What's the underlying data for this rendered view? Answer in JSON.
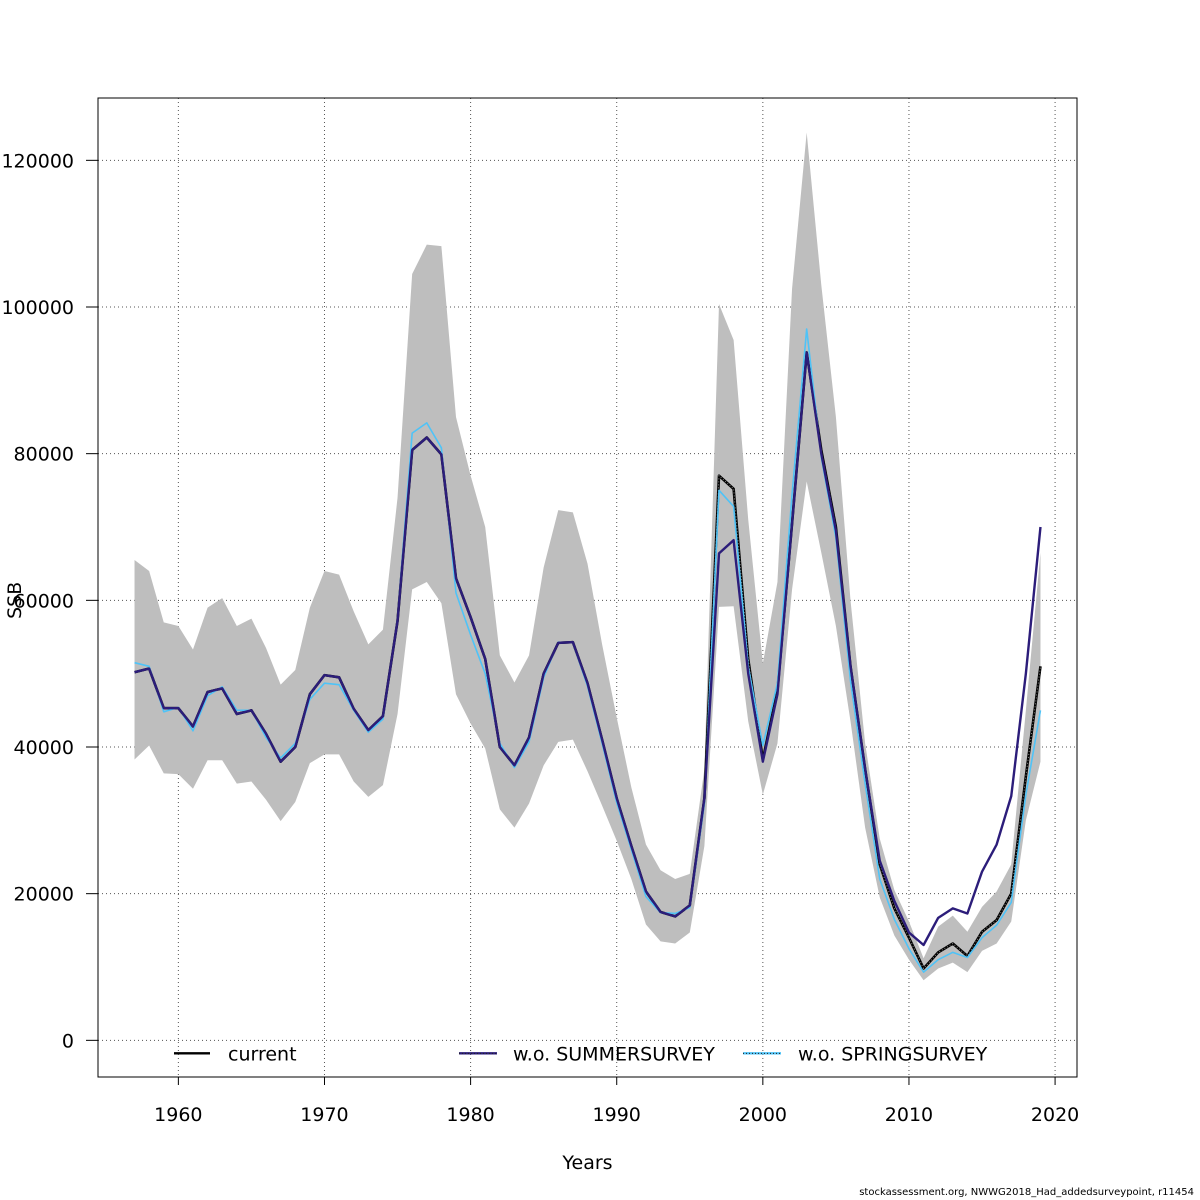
{
  "chart_data": {
    "type": "line",
    "xlabel": "Years",
    "ylabel": "SSB",
    "xlim": [
      1954.5,
      2021.5
    ],
    "ylim": [
      -5000,
      128500
    ],
    "x_ticks": [
      1960,
      1970,
      1980,
      1990,
      2000,
      2010,
      2020
    ],
    "y_ticks": [
      0,
      20000,
      40000,
      60000,
      80000,
      100000,
      120000
    ],
    "x_tick_labels": [
      "1960",
      "1970",
      "1980",
      "1990",
      "2000",
      "2010",
      "2020"
    ],
    "y_tick_labels": [
      "0",
      "20000",
      "40000",
      "60000",
      "80000",
      "100000",
      "120000"
    ],
    "grid": true,
    "x": [
      1957,
      1958,
      1959,
      1960,
      1961,
      1962,
      1963,
      1964,
      1965,
      1966,
      1967,
      1968,
      1969,
      1970,
      1971,
      1972,
      1973,
      1974,
      1975,
      1976,
      1977,
      1978,
      1979,
      1980,
      1981,
      1982,
      1983,
      1984,
      1985,
      1986,
      1987,
      1988,
      1989,
      1990,
      1991,
      1992,
      1993,
      1994,
      1995,
      1996,
      1997,
      1998,
      1999,
      2000,
      2001,
      2002,
      2003,
      2004,
      2005,
      2006,
      2007,
      2008,
      2009,
      2010,
      2011,
      2012,
      2013,
      2014,
      2015,
      2016,
      2017,
      2018,
      2019
    ],
    "confidence_band": {
      "name": "current 95% CI",
      "color": "#bebebe",
      "upper": [
        65500,
        64000,
        57000,
        56500,
        53300,
        59000,
        60300,
        56500,
        57500,
        53500,
        48500,
        50500,
        59000,
        64000,
        63500,
        58500,
        54000,
        56000,
        74000,
        104500,
        108500,
        108300,
        85000,
        77000,
        70000,
        52500,
        48800,
        52500,
        64500,
        72300,
        72000,
        65000,
        54000,
        44000,
        34500,
        26700,
        23200,
        22000,
        22700,
        37000,
        100400,
        95500,
        71000,
        51400,
        62500,
        102500,
        123800,
        103000,
        85000,
        60000,
        40500,
        27500,
        20500,
        16200,
        11200,
        15500,
        17000,
        14800,
        18200,
        20300,
        24000,
        45000,
        66500
      ],
      "lower": [
        38300,
        40200,
        36400,
        36300,
        34300,
        38200,
        38200,
        35000,
        35300,
        32800,
        29900,
        32500,
        37800,
        39000,
        39000,
        35300,
        33200,
        34800,
        44500,
        61500,
        62500,
        59600,
        47200,
        43200,
        39800,
        31500,
        29000,
        32300,
        37500,
        40700,
        41000,
        36700,
        32000,
        27200,
        22000,
        15800,
        13500,
        13200,
        14700,
        26500,
        59100,
        59200,
        43500,
        33500,
        40500,
        61500,
        76200,
        66500,
        56500,
        43500,
        29000,
        19500,
        14300,
        11000,
        8200,
        9800,
        10600,
        9300,
        12200,
        13200,
        16200,
        30000,
        38000
      ]
    },
    "series": [
      {
        "name": "current",
        "color": "#000000",
        "style": "solid",
        "values": [
          50200,
          50700,
          45300,
          45300,
          42800,
          47500,
          48000,
          44500,
          45000,
          41800,
          38000,
          40000,
          47200,
          49800,
          49500,
          45200,
          42300,
          44200,
          57200,
          80500,
          82200,
          79900,
          63000,
          57700,
          52000,
          40000,
          37500,
          41300,
          50000,
          54200,
          54300,
          48700,
          41000,
          33000,
          26500,
          20300,
          17500,
          16900,
          18400,
          33000,
          77000,
          75200,
          52000,
          38300,
          47700,
          70500,
          93800,
          80500,
          70000,
          51000,
          37000,
          24000,
          18000,
          14000,
          9800,
          12000,
          13200,
          11500,
          14800,
          16400,
          20000,
          36000,
          51000
        ]
      },
      {
        "name": "w.o. SUMMERSURVEY",
        "color": "#2c1d7a",
        "style": "solid",
        "values": [
          50200,
          50700,
          45300,
          45300,
          42800,
          47500,
          48000,
          44500,
          45000,
          41800,
          38000,
          40000,
          47200,
          49800,
          49500,
          45200,
          42300,
          44200,
          57200,
          80500,
          82200,
          79900,
          63000,
          57700,
          52000,
          40000,
          37500,
          41300,
          50000,
          54200,
          54300,
          48700,
          41000,
          33000,
          26500,
          20300,
          17500,
          16900,
          18400,
          33000,
          66400,
          68200,
          50000,
          38000,
          47200,
          70500,
          93800,
          80000,
          69500,
          51000,
          37000,
          24500,
          19000,
          14700,
          13000,
          16700,
          18000,
          17300,
          23000,
          26700,
          33300,
          50000,
          70000
        ]
      },
      {
        "name": "w.o. SPRINGSURVEY",
        "color": "#4fc3f7",
        "style": "solid",
        "values": [
          51500,
          51000,
          44800,
          45400,
          42200,
          47000,
          48200,
          45000,
          45000,
          41300,
          38500,
          40500,
          46500,
          48700,
          48500,
          45000,
          42000,
          43800,
          57500,
          82800,
          84200,
          80800,
          61000,
          55300,
          50000,
          40500,
          37200,
          40700,
          49500,
          54300,
          54200,
          48300,
          40500,
          32400,
          26000,
          19600,
          17400,
          17300,
          18100,
          32300,
          75000,
          72800,
          51000,
          40200,
          48700,
          74500,
          97000,
          79500,
          68500,
          49000,
          35000,
          22000,
          16500,
          12500,
          9300,
          11000,
          12000,
          11300,
          14000,
          15700,
          18800,
          33500,
          45000
        ]
      }
    ],
    "legend": [
      "current",
      "w.o. SUMMERSURVEY",
      "w.o. SPRINGSURVEY"
    ],
    "legend_position": "bottom",
    "footer_text": "stockassessment.org, NWWG2018_Had_addedsurveypoint, r11454"
  }
}
